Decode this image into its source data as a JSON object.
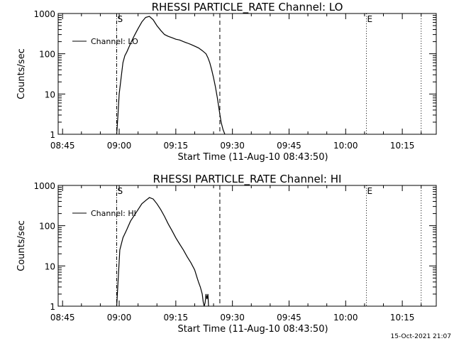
{
  "timestamp": "15-Oct-2021 21:07",
  "chart_data": [
    {
      "type": "line",
      "title": "RHESSI PARTICLE_RATE Channel: LO",
      "xlabel": "Start Time (11-Aug-10 08:43:50)",
      "ylabel": "Counts/sec",
      "y_scale": "log",
      "ylim": [
        1,
        1000
      ],
      "y_ticks": [
        "1",
        "10",
        "100",
        "1000"
      ],
      "x_range": [
        "08:43:50",
        "10:24:00"
      ],
      "x_ticks": [
        "08:45",
        "09:00",
        "09:15",
        "09:30",
        "09:45",
        "10:00",
        "10:15"
      ],
      "legend": {
        "position": "top-left",
        "entries": [
          "Channel: LO"
        ]
      },
      "markers": [
        {
          "label": "S",
          "time": "08:59:20",
          "style": "dashdot"
        },
        {
          "label": "",
          "time": "09:26:40",
          "style": "dashed"
        },
        {
          "label": "E",
          "time": "10:05:30",
          "style": "dotted"
        },
        {
          "label": "",
          "time": "10:20:00",
          "style": "dotted"
        }
      ],
      "series": [
        {
          "name": "Channel: LO",
          "x": [
            "08:59:20",
            "08:59:40",
            "09:00:00",
            "09:00:30",
            "09:01:00",
            "09:01:30",
            "09:02:00",
            "09:02:30",
            "09:03:00",
            "09:04:00",
            "09:05:00",
            "09:06:00",
            "09:07:00",
            "09:08:00",
            "09:09:00",
            "09:10:00",
            "09:11:00",
            "09:12:00",
            "09:13:00",
            "09:14:00",
            "09:15:00",
            "09:16:00",
            "09:17:00",
            "09:18:00",
            "09:19:00",
            "09:20:00",
            "09:21:00",
            "09:22:00",
            "09:23:00",
            "09:23:30",
            "09:24:00",
            "09:24:30",
            "09:25:00",
            "09:25:30",
            "09:26:00",
            "09:26:30",
            "09:27:00",
            "09:27:30",
            "09:28:00"
          ],
          "y": [
            1,
            3,
            10,
            25,
            60,
            90,
            110,
            140,
            180,
            280,
            420,
            620,
            800,
            850,
            700,
            500,
            380,
            300,
            270,
            250,
            230,
            220,
            200,
            185,
            170,
            155,
            140,
            120,
            100,
            80,
            60,
            40,
            25,
            15,
            8,
            4,
            2,
            1.3,
            1
          ]
        }
      ]
    },
    {
      "type": "line",
      "title": "RHESSI PARTICLE_RATE Channel: HI",
      "xlabel": "Start Time (11-Aug-10 08:43:50)",
      "ylabel": "Counts/sec",
      "y_scale": "log",
      "ylim": [
        1,
        1000
      ],
      "y_ticks": [
        "1",
        "10",
        "100",
        "1000"
      ],
      "x_range": [
        "08:43:50",
        "10:24:00"
      ],
      "x_ticks": [
        "08:45",
        "09:00",
        "09:15",
        "09:30",
        "09:45",
        "10:00",
        "10:15"
      ],
      "legend": {
        "position": "top-left",
        "entries": [
          "Channel: HI"
        ]
      },
      "markers": [
        {
          "label": "S",
          "time": "08:59:20",
          "style": "dashdot"
        },
        {
          "label": "",
          "time": "09:26:40",
          "style": "dashed"
        },
        {
          "label": "E",
          "time": "10:05:30",
          "style": "dotted"
        },
        {
          "label": "",
          "time": "10:20:00",
          "style": "dotted"
        }
      ],
      "series": [
        {
          "name": "Channel: HI",
          "x": [
            "08:59:20",
            "08:59:45",
            "09:00:10",
            "09:01:00",
            "09:02:00",
            "09:03:00",
            "09:04:00",
            "09:05:00",
            "09:06:00",
            "09:07:00",
            "09:08:00",
            "09:09:00",
            "09:10:00",
            "09:11:00",
            "09:12:00",
            "09:13:00",
            "09:14:00",
            "09:15:00",
            "09:16:00",
            "09:17:00",
            "09:18:00",
            "09:19:00",
            "09:20:00",
            "09:20:40",
            "09:21:00",
            "09:21:30",
            "09:22:00",
            "09:22:15",
            "09:22:30",
            "09:22:45",
            "09:23:00",
            "09:23:15",
            "09:23:30",
            "09:23:40"
          ],
          "y": [
            1,
            5,
            25,
            50,
            80,
            130,
            180,
            250,
            350,
            420,
            500,
            460,
            350,
            250,
            170,
            110,
            75,
            50,
            35,
            25,
            17,
            12,
            8,
            5,
            4,
            3,
            2,
            1.3,
            1,
            1.2,
            2,
            1.5,
            2,
            1
          ]
        }
      ]
    }
  ]
}
